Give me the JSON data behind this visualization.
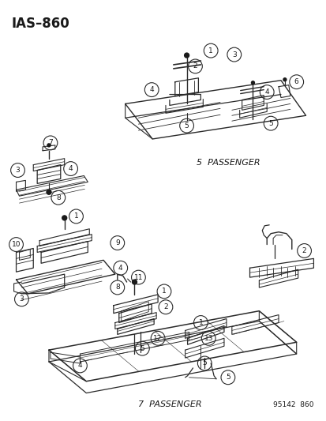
{
  "title": "IAS–860",
  "background_color": "#ffffff",
  "fig_width": 4.14,
  "fig_height": 5.33,
  "dpi": 100,
  "label_5passenger": "5  PASSENGER",
  "label_7passenger": "7  PASSENGER",
  "watermark": "95142  860",
  "line_color": "#2a2a2a",
  "text_color": "#1a1a1a",
  "callout_fontsize": 6.5,
  "label_fontsize": 8,
  "title_fontsize": 12
}
